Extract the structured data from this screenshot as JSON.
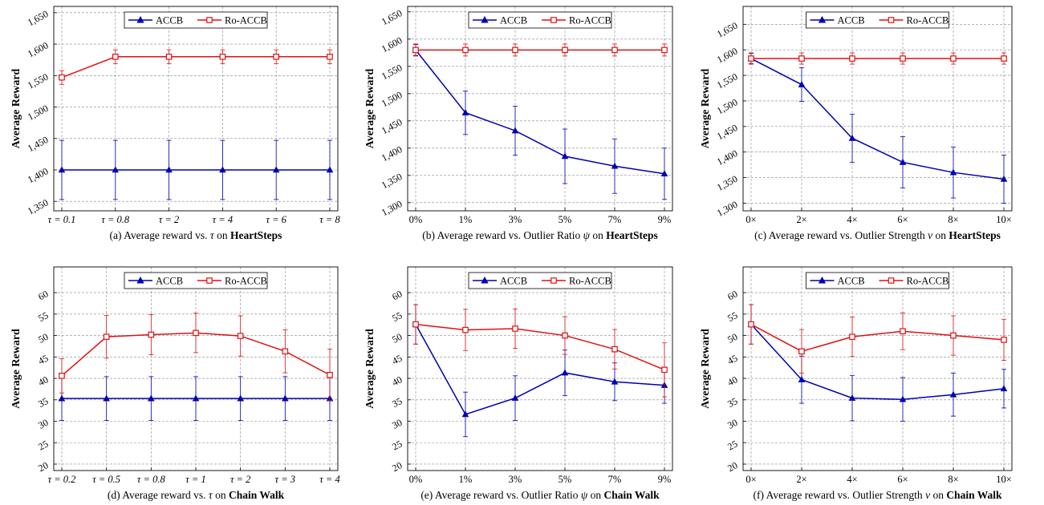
{
  "colors": {
    "acc": "#0000b4",
    "ro": "#e01010",
    "grid": "#888888",
    "axis": "#000000"
  },
  "chart_data": [
    {
      "type": "line",
      "caption": {
        "prefix": "(a) Average reward vs. ",
        "math": "τ",
        "mid": " on ",
        "bold": "HeartSteps"
      },
      "ylabel": "Average Reward",
      "categories": [
        "τ = 0.1",
        "τ = 0.8",
        "τ = 2",
        "τ = 4",
        "τ = 6",
        "τ = 8"
      ],
      "yticks": [
        1350,
        1400,
        1450,
        1500,
        1550,
        1600,
        1650
      ],
      "ytick_labels": [
        "1,350",
        "1,400",
        "1,450",
        "1,500",
        "1,550",
        "1,600",
        "1,650"
      ],
      "ylim": [
        1335,
        1660
      ],
      "legend": "top",
      "grid": true,
      "series": [
        {
          "name": "ACCB",
          "color": "#0000b4",
          "marker": "triangle",
          "values": [
            1400,
            1400,
            1400,
            1400,
            1400,
            1400
          ],
          "errors": [
            47,
            47,
            47,
            47,
            47,
            47
          ]
        },
        {
          "name": "Ro-ACCB",
          "color": "#e01010",
          "marker": "square",
          "values": [
            1547,
            1580,
            1580,
            1580,
            1580,
            1580
          ],
          "errors": [
            11,
            11,
            11,
            11,
            11,
            11
          ]
        }
      ]
    },
    {
      "type": "line",
      "caption": {
        "prefix": "(b) Average reward vs. Outlier Ratio ",
        "math": "ψ",
        "mid": " on ",
        "bold": "HeartSteps"
      },
      "ylabel": "Average Reward",
      "categories": [
        "0%",
        "1%",
        "3%",
        "5%",
        "7%",
        "9%"
      ],
      "yticks": [
        1300,
        1350,
        1400,
        1450,
        1500,
        1550,
        1600,
        1650
      ],
      "ytick_labels": [
        "1,300",
        "1,350",
        "1,400",
        "1,450",
        "1,500",
        "1,550",
        "1,600",
        "1,650"
      ],
      "ylim": [
        1285,
        1660
      ],
      "legend": "top",
      "grid": true,
      "series": [
        {
          "name": "ACCB",
          "color": "#0000b4",
          "marker": "triangle",
          "values": [
            1580,
            1465,
            1432,
            1385,
            1367,
            1353
          ],
          "errors": [
            10,
            40,
            45,
            50,
            50,
            47
          ]
        },
        {
          "name": "Ro-ACCB",
          "color": "#e01010",
          "marker": "square",
          "values": [
            1580,
            1580,
            1580,
            1580,
            1580,
            1580
          ],
          "errors": [
            11,
            11,
            11,
            11,
            11,
            11
          ]
        }
      ]
    },
    {
      "type": "line",
      "caption": {
        "prefix": "(c) Average reward vs. Outlier Strength ",
        "math": "ν",
        "mid": " on ",
        "bold": "HeartSteps"
      },
      "ylabel": "Average Reward",
      "categories": [
        "0×",
        "2×",
        "4×",
        "6×",
        "8×",
        "10×"
      ],
      "yticks": [
        1300,
        1350,
        1400,
        1450,
        1500,
        1550,
        1600,
        1650
      ],
      "ytick_labels": [
        "1,300",
        "1,350",
        "1,400",
        "1,450",
        "1,500",
        "1,550",
        "1,600",
        "1,650"
      ],
      "ylim": [
        1285,
        1685
      ],
      "legend": "top",
      "grid": true,
      "series": [
        {
          "name": "ACCB",
          "color": "#0000b4",
          "marker": "triangle",
          "values": [
            1583,
            1532,
            1427,
            1380,
            1360,
            1347
          ],
          "errors": [
            10,
            33,
            47,
            50,
            50,
            47
          ]
        },
        {
          "name": "Ro-ACCB",
          "color": "#e01010",
          "marker": "square",
          "values": [
            1583,
            1583,
            1583,
            1583,
            1583,
            1583
          ],
          "errors": [
            11,
            11,
            11,
            11,
            11,
            11
          ]
        }
      ]
    },
    {
      "type": "line",
      "caption": {
        "prefix": "(d) Average reward vs. ",
        "math": "τ",
        "mid": " on ",
        "bold": "Chain Walk"
      },
      "ylabel": "Average Reward",
      "categories": [
        "τ = 0.2",
        "τ = 0.5",
        "τ = 0.8",
        "τ = 1",
        "τ = 2",
        "τ = 3",
        "τ = 4"
      ],
      "yticks": [
        20,
        25,
        30,
        35,
        40,
        45,
        50,
        55,
        60
      ],
      "ytick_labels": [
        "20",
        "25",
        "30",
        "35",
        "40",
        "45",
        "50",
        "55",
        "60"
      ],
      "ylim": [
        18.5,
        66
      ],
      "legend": "top",
      "grid": true,
      "series": [
        {
          "name": "ACCB",
          "color": "#0000b4",
          "marker": "triangle",
          "values": [
            35.3,
            35.3,
            35.3,
            35.3,
            35.3,
            35.3,
            35.3
          ],
          "errors": [
            5.1,
            5.1,
            5.1,
            5.1,
            5.1,
            5.1,
            5.1
          ]
        },
        {
          "name": "Ro-ACCB",
          "color": "#e01010",
          "marker": "square",
          "values": [
            40.6,
            49.7,
            50.2,
            50.6,
            49.9,
            46.3,
            40.8
          ],
          "errors": [
            4,
            5,
            4.7,
            4.6,
            4.7,
            5,
            6
          ]
        }
      ]
    },
    {
      "type": "line",
      "caption": {
        "prefix": "(e) Average reward vs. Outlier Ratio ",
        "math": "ψ",
        "mid": " on ",
        "bold": "Chain Walk"
      },
      "ylabel": "Average Reward",
      "categories": [
        "0%",
        "1%",
        "3%",
        "5%",
        "7%",
        "9%"
      ],
      "yticks": [
        20,
        25,
        30,
        35,
        40,
        45,
        50,
        55,
        60
      ],
      "ytick_labels": [
        "20",
        "25",
        "30",
        "35",
        "40",
        "45",
        "50",
        "55",
        "60"
      ],
      "ylim": [
        18.5,
        66
      ],
      "legend": "top",
      "grid": true,
      "series": [
        {
          "name": "ACCB",
          "color": "#0000b4",
          "marker": "triangle",
          "values": [
            52.6,
            31.6,
            35.4,
            41.3,
            39.2,
            38.4
          ],
          "errors": [
            4.6,
            5.2,
            5.2,
            5.3,
            4.4,
            4.2
          ]
        },
        {
          "name": "Ro-ACCB",
          "color": "#e01010",
          "marker": "square",
          "values": [
            52.6,
            51.3,
            51.6,
            50.0,
            46.8,
            42.0
          ],
          "errors": [
            4.6,
            4.8,
            4.6,
            4.4,
            4.6,
            6.3
          ]
        }
      ]
    },
    {
      "type": "line",
      "caption": {
        "prefix": "(f) Average reward vs. Outlier Strength ",
        "math": "ν",
        "mid": " on ",
        "bold": "Chain Walk"
      },
      "ylabel": "Average Reward",
      "categories": [
        "0×",
        "2×",
        "4×",
        "6×",
        "8×",
        "10×"
      ],
      "yticks": [
        20,
        25,
        30,
        35,
        40,
        45,
        50,
        55,
        60
      ],
      "ytick_labels": [
        "20",
        "25",
        "30",
        "35",
        "40",
        "45",
        "50",
        "55",
        "60"
      ],
      "ylim": [
        18.5,
        66
      ],
      "legend": "top",
      "grid": true,
      "series": [
        {
          "name": "ACCB",
          "color": "#0000b4",
          "marker": "triangle",
          "values": [
            52.6,
            39.7,
            35.4,
            35.1,
            36.2,
            37.6
          ],
          "errors": [
            4.6,
            5.5,
            5.3,
            5.1,
            5.0,
            4.5
          ]
        },
        {
          "name": "Ro-ACCB",
          "color": "#e01010",
          "marker": "square",
          "values": [
            52.6,
            46.3,
            49.7,
            51.0,
            50.0,
            49.0
          ],
          "errors": [
            4.6,
            5.1,
            4.6,
            4.3,
            4.6,
            4.8
          ]
        }
      ]
    }
  ]
}
